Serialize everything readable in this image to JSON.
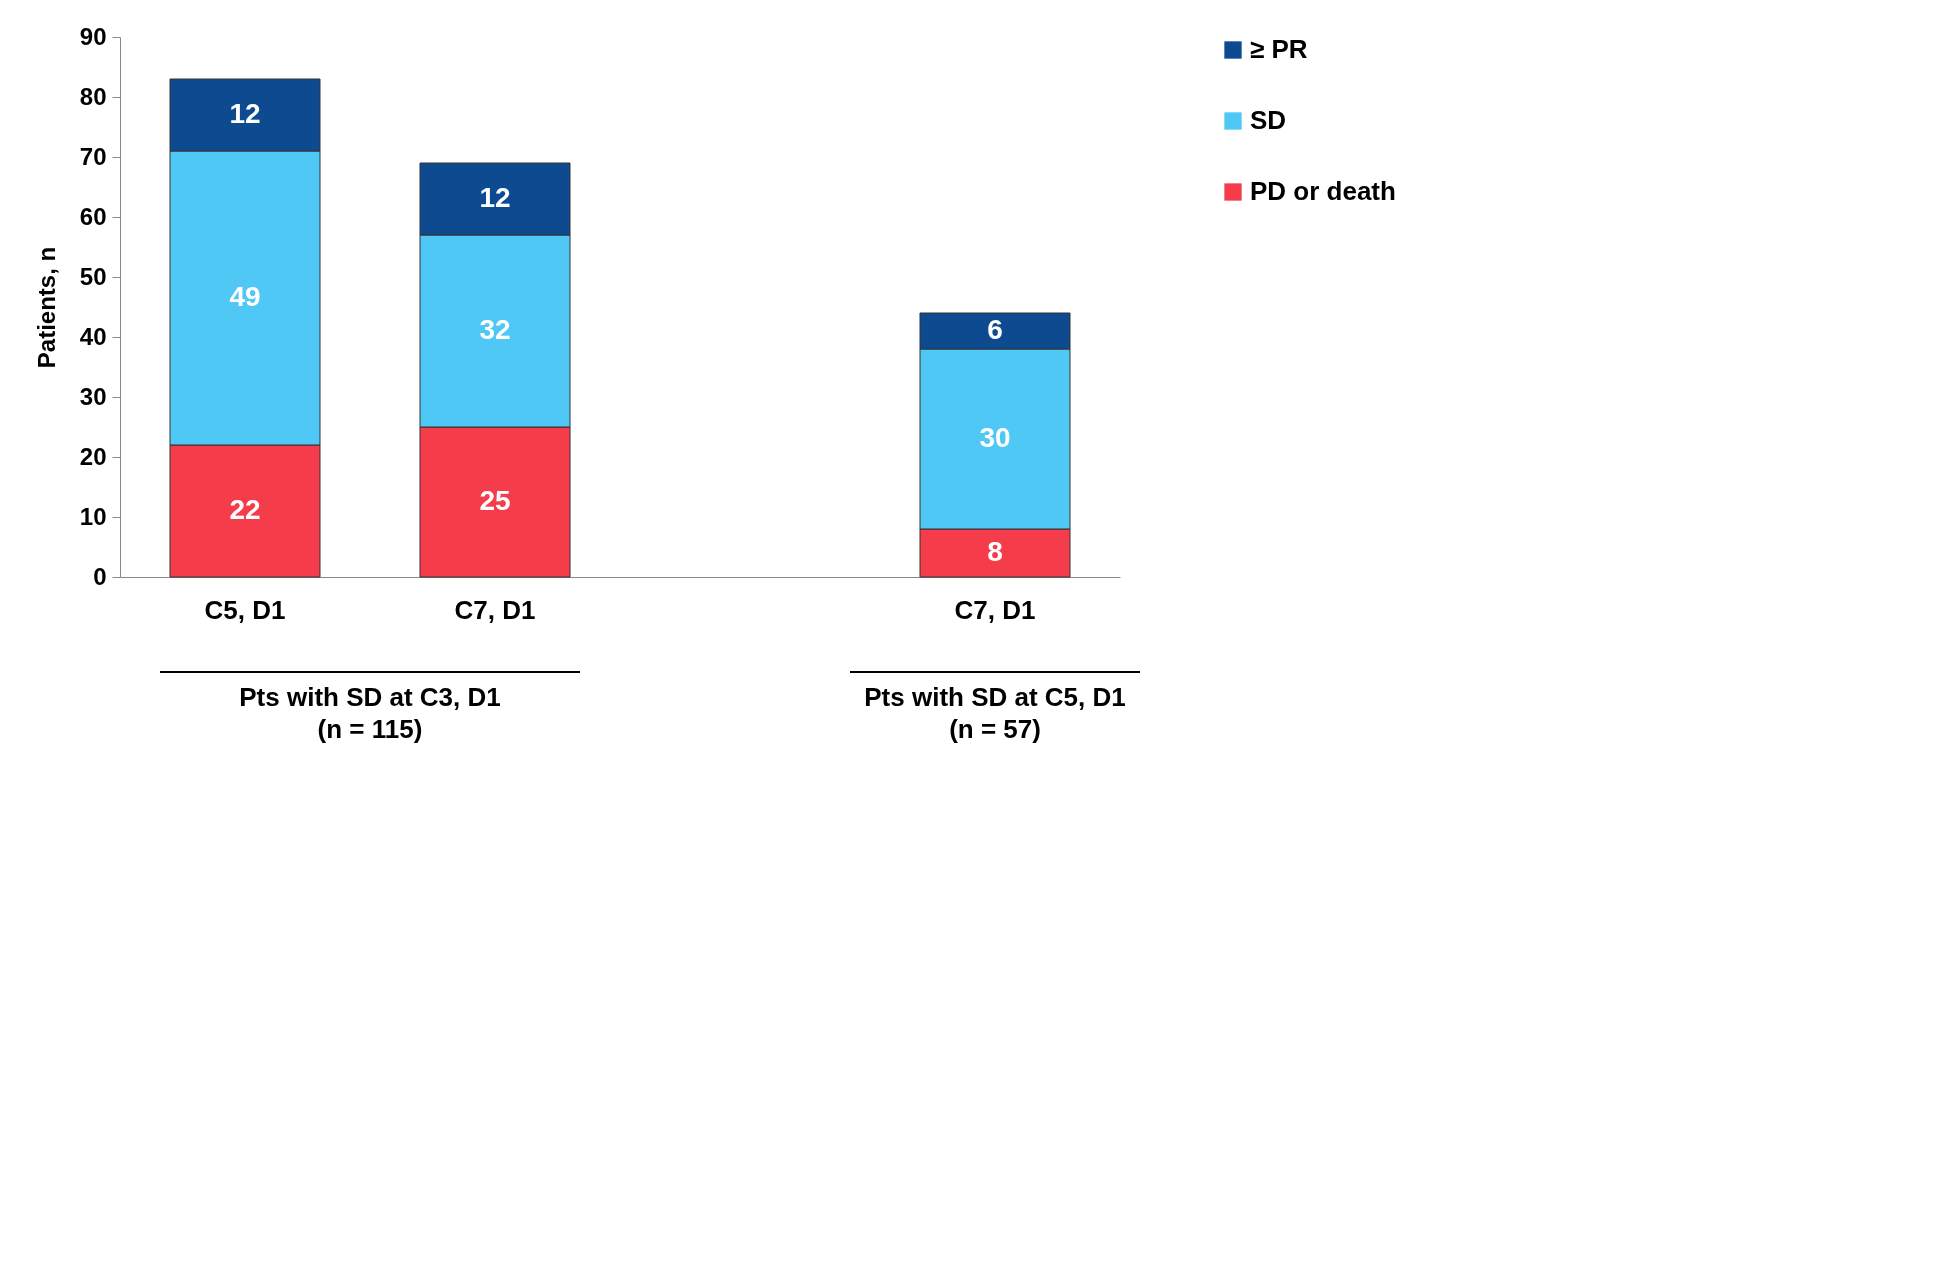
{
  "chart_data": {
    "type": "bar",
    "stacked": true,
    "ylabel": "Patients, n",
    "categories": [
      "C5, D1",
      "C7, D1",
      null,
      "C7, D1"
    ],
    "series": [
      {
        "name": "PD or death",
        "color": "#f53c4a",
        "values": [
          22,
          25,
          null,
          8
        ]
      },
      {
        "name": "SD",
        "color": "#4fc8f5",
        "values": [
          49,
          32,
          null,
          30
        ]
      },
      {
        "name": "≥ PR",
        "color": "#0d4a8f",
        "values": [
          12,
          12,
          null,
          6
        ]
      }
    ],
    "ylim": [
      0,
      90
    ],
    "yticks": [
      0,
      10,
      20,
      30,
      40,
      50,
      60,
      70,
      80,
      90
    ],
    "data_labels": true,
    "legend": "top right",
    "grid": false,
    "annotations": [
      "Pts with SD at C3, D1\n(n = 115)",
      "Pts with SD at C5, D1\n(n = 57)"
    ]
  }
}
